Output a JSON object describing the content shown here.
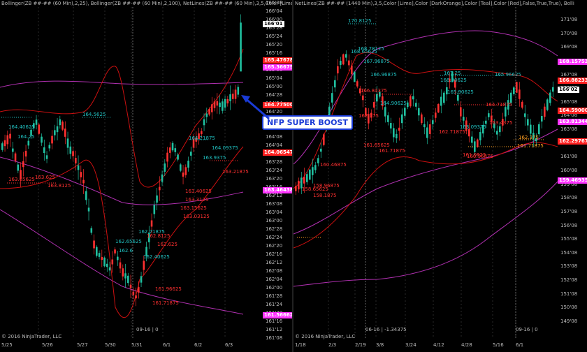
{
  "left": {
    "header": "Bollinger(ZB ##-## (60 Min),2,25), Bollinger(ZB ##-## (60 Min),2,100), NetLines(ZB ##-## (60 Min),3,5,Color [Lime],Color [",
    "copyright": "© 2016 NinjaTrader, LLC",
    "position_label": "09-16 | 0",
    "x_labels": [
      "5/25",
      "5/26",
      "5/27",
      "5/30",
      "5/31",
      "6/1",
      "6/2",
      "6/3"
    ],
    "y_labels": [
      "166'08",
      "166'04",
      "166'00",
      "165'28",
      "165'24",
      "165'20",
      "165'16",
      "165'12",
      "165'08",
      "165'04",
      "165'00",
      "164'28",
      "164'24",
      "164'20",
      "164'16",
      "164'12",
      "164'08",
      "164'04",
      "164'00",
      "163'28",
      "163'24",
      "163'20",
      "163'16",
      "163'12",
      "163'08",
      "163'04",
      "163'00",
      "162'28",
      "162'24",
      "162'20",
      "162'16",
      "162'12",
      "162'08",
      "162'04",
      "162'00",
      "161'28",
      "161'24",
      "161'20",
      "161'16",
      "161'12",
      "161'08"
    ],
    "price_tags": [
      {
        "text": "166'01",
        "bg": "#ffffff",
        "fg": "#000000"
      },
      {
        "text": "165.47678",
        "bg": "#ff2020",
        "fg": "#ffffff"
      },
      {
        "text": "165.36675",
        "bg": "#ff33ff",
        "fg": "#ffffff"
      },
      {
        "text": "164.77500",
        "bg": "#ff2020",
        "fg": "#ffffff"
      },
      {
        "text": "164.06547",
        "bg": "#ff2020",
        "fg": "#ffffff"
      },
      {
        "text": "163.46438",
        "bg": "#ff33ff",
        "fg": "#ffffff"
      },
      {
        "text": "161.56662",
        "bg": "#ff33ff",
        "fg": "#ffffff"
      }
    ],
    "level_labels": [
      {
        "text": "164.40625",
        "c": "#20c0c0"
      },
      {
        "text": "164.25",
        "c": "#20c0c0"
      },
      {
        "text": "164.5625",
        "c": "#20c0c0"
      },
      {
        "text": "164.21875",
        "c": "#20c0c0"
      },
      {
        "text": "163.9375",
        "c": "#20c0c0"
      },
      {
        "text": "164.09375",
        "c": "#20c0c0"
      },
      {
        "text": "162.65625",
        "c": "#20c0c0"
      },
      {
        "text": "162.71875",
        "c": "#20c0c0"
      },
      {
        "text": "162.6",
        "c": "#20c0c0"
      },
      {
        "text": "163.65625",
        "c": "#ff3030"
      },
      {
        "text": "163.8125",
        "c": "#ff3030"
      },
      {
        "text": "163.625",
        "c": "#ff3030"
      },
      {
        "text": "163.40625",
        "c": "#ff3030"
      },
      {
        "text": "163.3125",
        "c": "#ff3030"
      },
      {
        "text": "163.15625",
        "c": "#ff3030"
      },
      {
        "text": "163.03125",
        "c": "#ff3030"
      },
      {
        "text": "162.8125",
        "c": "#ff3030"
      },
      {
        "text": "162.625",
        "c": "#ff3030"
      },
      {
        "text": "162.40625",
        "c": "#20c0c0"
      },
      {
        "text": "161.96625",
        "c": "#ff3030"
      },
      {
        "text": "161.71875",
        "c": "#ff3030"
      },
      {
        "text": "163.21875",
        "c": "#ff3030"
      }
    ]
  },
  "right": {
    "header": "NetLines(ZB ##-## (1440 Min),3,5,Color [Lime],Color [DarkOrange],Color [Teal],Color [Red],False,True,True), Bolli",
    "copyright": "© 2016 NinjaTrader, LLC",
    "position_label_1": "06-16 | -1.34375",
    "position_label_2": "09-16 | 0",
    "x_labels": [
      "1/18",
      "2/3",
      "2/19",
      "3/8",
      "3/24",
      "4/12",
      "4/28",
      "5/16",
      "6/1"
    ],
    "y_labels": [
      "171'08",
      "170'08",
      "169'08",
      "168'08",
      "167'08",
      "166'08",
      "165'08",
      "164'08",
      "163'08",
      "162'08",
      "161'08",
      "160'08",
      "159'08",
      "158'08",
      "157'08",
      "156'08",
      "155'08",
      "154'08",
      "153'08",
      "152'08",
      "151'08",
      "150'08",
      "149'08"
    ],
    "price_tags": [
      {
        "text": "168.15753",
        "bg": "#ff33ff",
        "fg": "#ffffff"
      },
      {
        "text": "166.88233",
        "bg": "#ff2020",
        "fg": "#ffffff"
      },
      {
        "text": "166'02",
        "bg": "#ffffff",
        "fg": "#000000"
      },
      {
        "text": "164.59000",
        "bg": "#ff2020",
        "fg": "#ffffff"
      },
      {
        "text": "163.81344",
        "bg": "#ff33ff",
        "fg": "#ffffff"
      },
      {
        "text": "162.29767",
        "bg": "#ff2020",
        "fg": "#ffffff"
      },
      {
        "text": "159.46935",
        "bg": "#ff33ff",
        "fg": "#ffffff"
      }
    ],
    "level_labels": [
      {
        "text": "170.8125",
        "c": "#20c0c0"
      },
      {
        "text": "168.65625",
        "c": "#20c0c0"
      },
      {
        "text": "168.78125",
        "c": "#20c0c0"
      },
      {
        "text": "167.96875",
        "c": "#20c0c0"
      },
      {
        "text": "166.96875",
        "c": "#20c0c0"
      },
      {
        "text": "167.25",
        "c": "#20c0c0"
      },
      {
        "text": "166.90625",
        "c": "#20c0c0"
      },
      {
        "text": "166.84375",
        "c": "#ff3030"
      },
      {
        "text": "165.90625",
        "c": "#20c0c0"
      },
      {
        "text": "164.90625",
        "c": "#20c0c0"
      },
      {
        "text": "164.71875",
        "c": "#ff3030"
      },
      {
        "text": "163.09375",
        "c": "#20c0c0"
      },
      {
        "text": "163.4375",
        "c": "#ff3030"
      },
      {
        "text": "162.375",
        "c": "#ff3030"
      },
      {
        "text": "161.71875",
        "c": "#ff3030"
      },
      {
        "text": "162.71875",
        "c": "#ff3030"
      },
      {
        "text": "161.65625",
        "c": "#ff3030"
      },
      {
        "text": "161.0625",
        "c": "#ff3030"
      },
      {
        "text": "160.96875",
        "c": "#ff3030"
      },
      {
        "text": "160.46875",
        "c": "#ff3030"
      },
      {
        "text": "158.96875",
        "c": "#ff3030"
      },
      {
        "text": "158.65625",
        "c": "#ff3030"
      },
      {
        "text": "158.1875",
        "c": "#ff3030"
      },
      {
        "text": "162.375",
        "c": "#ffa020"
      },
      {
        "text": "161.71875",
        "c": "#ffa020"
      },
      {
        "text": "165.96625",
        "c": "#20c0c0"
      }
    ]
  },
  "annotation": "NFP SUPER BOOST",
  "colors": {
    "up": "#20c0a0",
    "down": "#ff3030",
    "bb_outer": "#cc1010",
    "bb_long": "#b030b0"
  }
}
